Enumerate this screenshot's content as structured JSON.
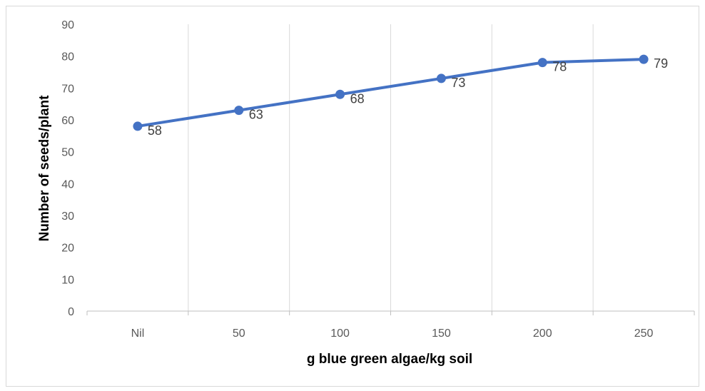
{
  "chart_data": {
    "type": "line",
    "categories": [
      "Nil",
      "50",
      "100",
      "150",
      "200",
      "250"
    ],
    "series": [
      {
        "values": [
          58,
          63,
          68,
          73,
          78,
          79
        ]
      }
    ],
    "data_labels": [
      "58",
      "63",
      "68",
      "73",
      "78",
      "79"
    ],
    "xlabel": "g blue green algae/kg soil",
    "ylabel": "Number of seeds/plant",
    "ylim": [
      0,
      90
    ],
    "yticks": [
      "0",
      "10",
      "20",
      "30",
      "40",
      "50",
      "60",
      "70",
      "80",
      "90"
    ],
    "grid": "vertical",
    "legend": "none",
    "colors": {
      "line": "#4472c4",
      "gridline": "#d9d9d9",
      "axis": "#bfbfbf"
    }
  }
}
